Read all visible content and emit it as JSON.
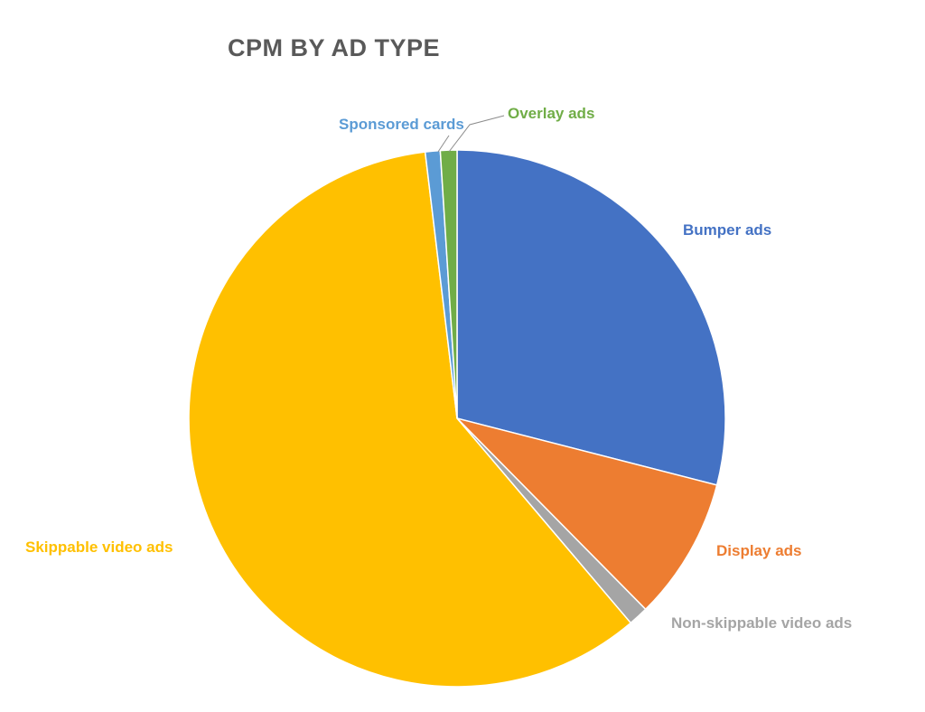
{
  "chart_data": {
    "type": "pie",
    "title": "CPM BY AD TYPE",
    "slices": [
      {
        "label": "Bumper ads",
        "value": 29.0,
        "color": "#4472C4"
      },
      {
        "label": "Display ads",
        "value": 8.6,
        "color": "#ED7D31"
      },
      {
        "label": "Non-skippable video ads",
        "value": 1.2,
        "color": "#A5A5A5"
      },
      {
        "label": "Skippable video ads",
        "value": 59.3,
        "color": "#FFC000"
      },
      {
        "label": "Sponsored cards",
        "value": 0.9,
        "color": "#5B9BD5"
      },
      {
        "label": "Overlay ads",
        "value": 1.0,
        "color": "#70AD47"
      }
    ],
    "legend": "none",
    "data_labels": "category names"
  }
}
